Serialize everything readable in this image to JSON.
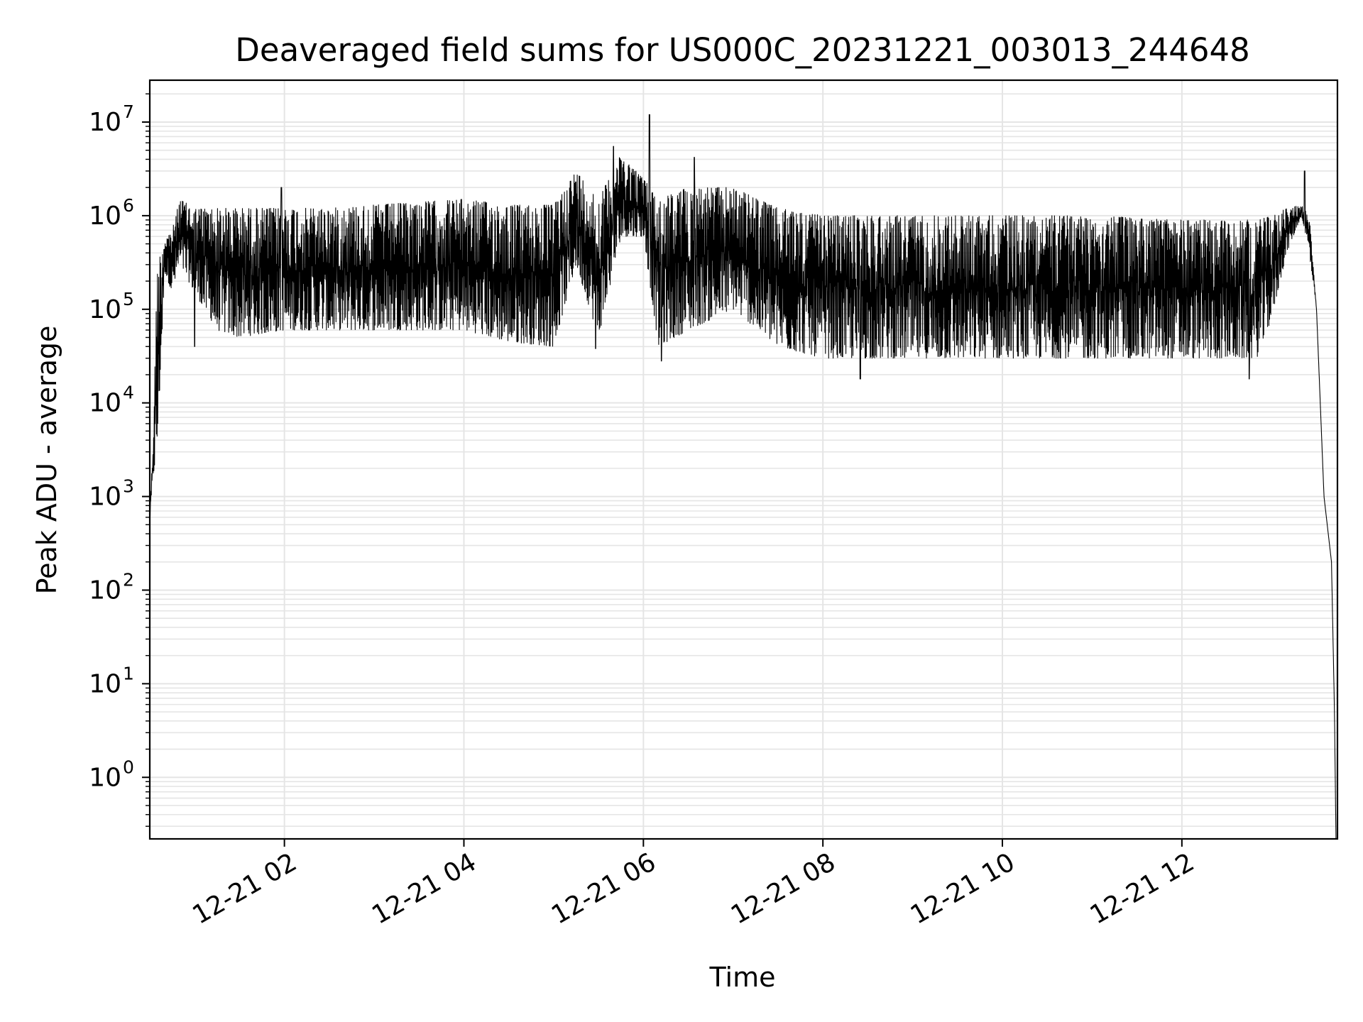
{
  "chart_data": {
    "type": "line",
    "title": "Deaveraged field sums for US000C_20231221_003013_244648",
    "xlabel": "Time",
    "ylabel": "Peak ADU - average",
    "yscale": "log",
    "ylim": [
      0.22,
      28000000
    ],
    "xlim": [
      "2023-12-21 00:30",
      "2023-12-21 13:44"
    ],
    "grid": true,
    "line_color": "#000000",
    "grid_color": "#e5e5e5",
    "x_ticks": [
      {
        "value": "2023-12-21 02:00",
        "label": "12-21 02"
      },
      {
        "value": "2023-12-21 04:00",
        "label": "12-21 04"
      },
      {
        "value": "2023-12-21 06:00",
        "label": "12-21 06"
      },
      {
        "value": "2023-12-21 08:00",
        "label": "12-21 08"
      },
      {
        "value": "2023-12-21 10:00",
        "label": "12-21 10"
      },
      {
        "value": "2023-12-21 12:00",
        "label": "12-21 12"
      }
    ],
    "y_ticks": [
      {
        "value": 1,
        "base": "10",
        "exp": "0"
      },
      {
        "value": 10,
        "base": "10",
        "exp": "1"
      },
      {
        "value": 100,
        "base": "10",
        "exp": "2"
      },
      {
        "value": 1000,
        "base": "10",
        "exp": "3"
      },
      {
        "value": 10000,
        "base": "10",
        "exp": "4"
      },
      {
        "value": 100000,
        "base": "10",
        "exp": "5"
      },
      {
        "value": 1000000,
        "base": "10",
        "exp": "6"
      },
      {
        "value": 10000000,
        "base": "10",
        "exp": "7"
      }
    ],
    "series": [
      {
        "envelope": [
          {
            "t": "2023-12-21 00:30",
            "high": 700,
            "low": 500
          },
          {
            "t": "2023-12-21 00:32",
            "high": 3000,
            "low": 1500
          },
          {
            "t": "2023-12-21 00:35",
            "high": 300000,
            "low": 3000
          },
          {
            "t": "2023-12-21 00:40",
            "high": 600000,
            "low": 250000
          },
          {
            "t": "2023-12-21 00:45",
            "high": 700000,
            "low": 150000
          },
          {
            "t": "2023-12-21 00:50",
            "high": 1500000,
            "low": 300000
          },
          {
            "t": "2023-12-21 01:00",
            "high": 1200000,
            "low": 150000
          },
          {
            "t": "2023-12-21 01:15",
            "high": 1200000,
            "low": 60000
          },
          {
            "t": "2023-12-21 01:30",
            "high": 1200000,
            "low": 50000
          },
          {
            "t": "2023-12-21 02:00",
            "high": 1200000,
            "low": 60000
          },
          {
            "t": "2023-12-21 02:30",
            "high": 1200000,
            "low": 60000
          },
          {
            "t": "2023-12-21 03:00",
            "high": 1300000,
            "low": 60000
          },
          {
            "t": "2023-12-21 03:30",
            "high": 1400000,
            "low": 60000
          },
          {
            "t": "2023-12-21 04:00",
            "high": 1500000,
            "low": 60000
          },
          {
            "t": "2023-12-21 04:30",
            "high": 1300000,
            "low": 45000
          },
          {
            "t": "2023-12-21 05:00",
            "high": 1300000,
            "low": 40000
          },
          {
            "t": "2023-12-21 05:15",
            "high": 3000000,
            "low": 300000
          },
          {
            "t": "2023-12-21 05:30",
            "high": 1500000,
            "low": 50000
          },
          {
            "t": "2023-12-21 05:45",
            "high": 4500000,
            "low": 600000
          },
          {
            "t": "2023-12-21 06:00",
            "high": 2500000,
            "low": 600000
          },
          {
            "t": "2023-12-21 06:10",
            "high": 1500000,
            "low": 40000
          },
          {
            "t": "2023-12-21 06:30",
            "high": 2000000,
            "low": 60000
          },
          {
            "t": "2023-12-21 07:00",
            "high": 2000000,
            "low": 100000
          },
          {
            "t": "2023-12-21 07:30",
            "high": 1200000,
            "low": 40000
          },
          {
            "t": "2023-12-21 08:00",
            "high": 1000000,
            "low": 30000
          },
          {
            "t": "2023-12-21 09:00",
            "high": 1000000,
            "low": 30000
          },
          {
            "t": "2023-12-21 10:00",
            "high": 1000000,
            "low": 30000
          },
          {
            "t": "2023-12-21 11:00",
            "high": 1000000,
            "low": 30000
          },
          {
            "t": "2023-12-21 12:00",
            "high": 900000,
            "low": 30000
          },
          {
            "t": "2023-12-21 12:50",
            "high": 900000,
            "low": 30000
          },
          {
            "t": "2023-12-21 13:00",
            "high": 1000000,
            "low": 80000
          },
          {
            "t": "2023-12-21 13:10",
            "high": 1200000,
            "low": 400000
          },
          {
            "t": "2023-12-21 13:20",
            "high": 1300000,
            "low": 1000000
          },
          {
            "t": "2023-12-21 13:25",
            "high": 1100000,
            "low": 400000
          },
          {
            "t": "2023-12-21 13:30",
            "high": 100000,
            "low": 100000
          },
          {
            "t": "2023-12-21 13:35",
            "high": 1000,
            "low": 1000
          },
          {
            "t": "2023-12-21 13:40",
            "high": 200,
            "low": 200
          },
          {
            "t": "2023-12-21 13:42",
            "high": 5,
            "low": 5
          },
          {
            "t": "2023-12-21 13:43",
            "high": 0.22,
            "low": 0.22
          }
        ],
        "peaks": [
          {
            "t": "2023-12-21 01:58",
            "value": 2000000
          },
          {
            "t": "2023-12-21 05:40",
            "value": 5500000
          },
          {
            "t": "2023-12-21 06:04",
            "value": 12000000
          },
          {
            "t": "2023-12-21 06:34",
            "value": 4200000
          },
          {
            "t": "2023-12-21 13:22",
            "value": 3000000
          }
        ],
        "dips": [
          {
            "t": "2023-12-21 01:00",
            "value": 40000
          },
          {
            "t": "2023-12-21 05:28",
            "value": 38000
          },
          {
            "t": "2023-12-21 06:12",
            "value": 28000
          },
          {
            "t": "2023-12-21 08:25",
            "value": 18000
          },
          {
            "t": "2023-12-21 12:45",
            "value": 18000
          }
        ]
      }
    ]
  }
}
